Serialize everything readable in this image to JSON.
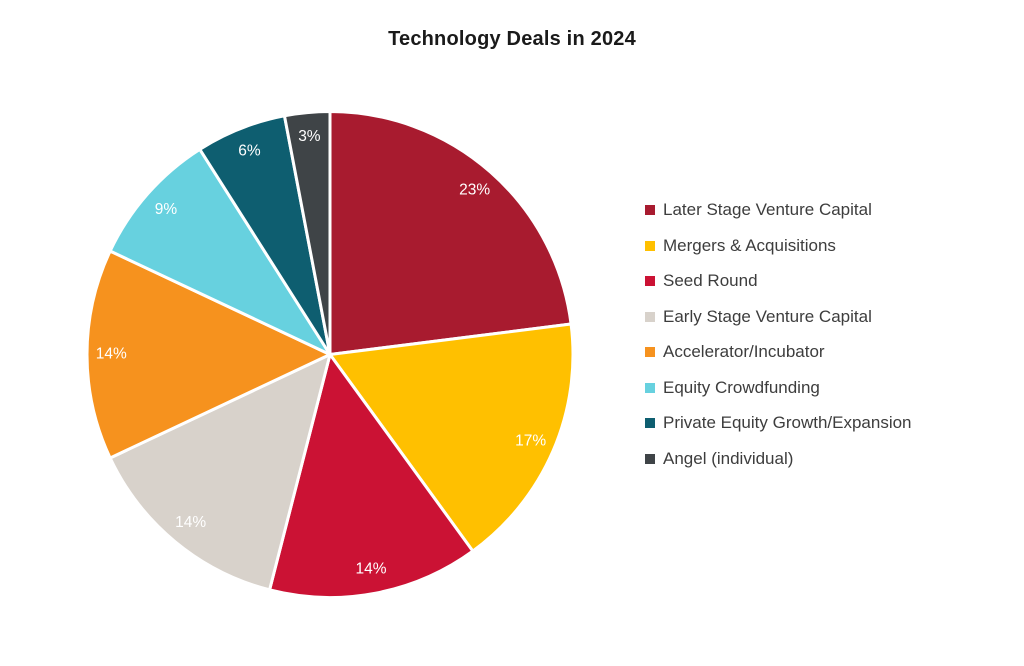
{
  "title": "Technology Deals in 2024",
  "colors": {
    "background": "#ffffff",
    "title_text": "#1a1a1a",
    "legend_text": "#3d3d3d",
    "slice_label_text": "#ffffff",
    "slice_border": "#ffffff"
  },
  "legend": {
    "position": "right",
    "swatch_shape": "square"
  },
  "chart_data": {
    "type": "pie",
    "title": "Technology Deals in 2024",
    "start_angle_deg": 0,
    "direction": "clockwise",
    "total": 100,
    "legend_position": "right",
    "slices": [
      {
        "label": "Later Stage Venture Capital",
        "value": 23,
        "display": "23%",
        "color": "#A81B2F"
      },
      {
        "label": "Mergers & Acquisitions",
        "value": 17,
        "display": "17%",
        "color": "#FFC000"
      },
      {
        "label": "Seed Round",
        "value": 14,
        "display": "14%",
        "color": "#CB1234"
      },
      {
        "label": "Early Stage Venture Capital",
        "value": 14,
        "display": "14%",
        "color": "#D8D2CB"
      },
      {
        "label": "Accelerator/Incubator",
        "value": 14,
        "display": "14%",
        "color": "#F6921E"
      },
      {
        "label": "Equity Crowdfunding",
        "value": 9,
        "display": "9%",
        "color": "#67D1DF"
      },
      {
        "label": "Private Equity Growth/Expansion",
        "value": 6,
        "display": "6%",
        "color": "#0E5E70"
      },
      {
        "label": "Angel (individual)",
        "value": 3,
        "display": "3%",
        "color": "#3F4447"
      }
    ]
  }
}
